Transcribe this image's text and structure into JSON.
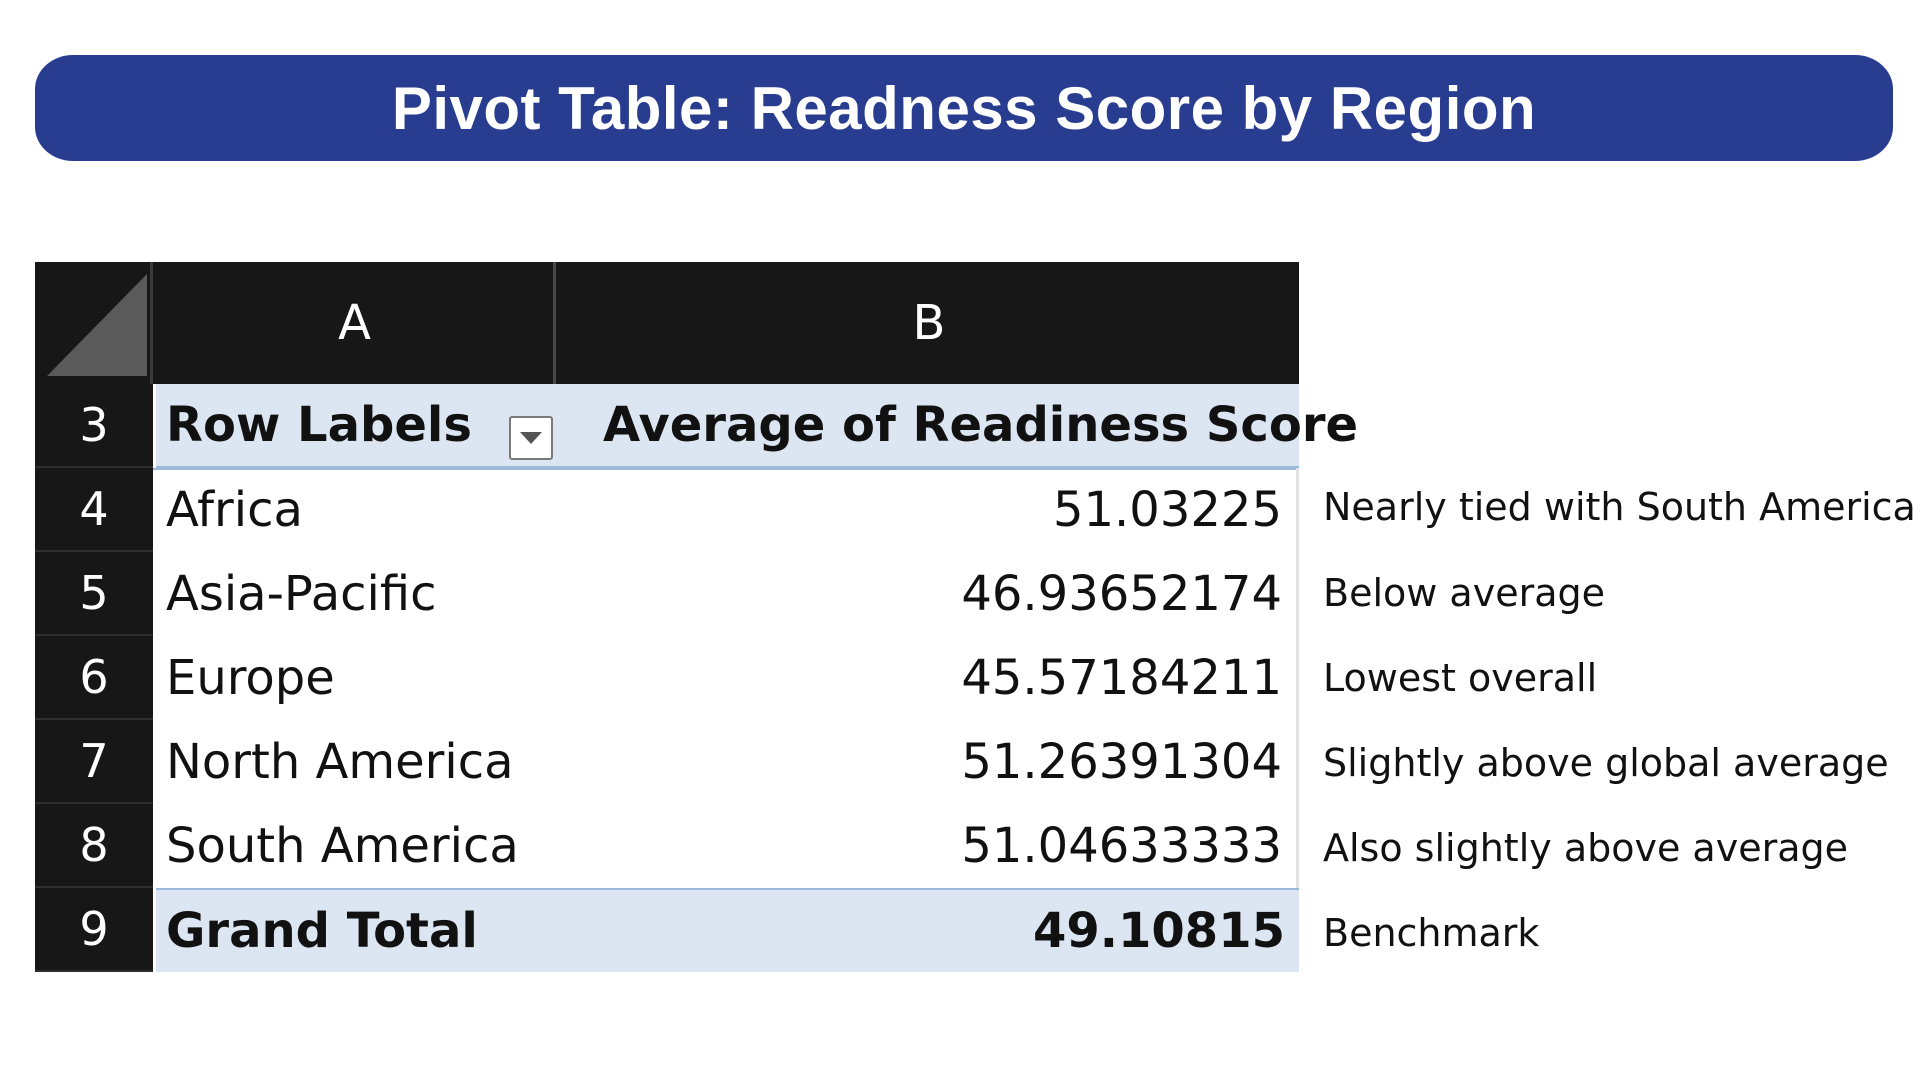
{
  "title": "Pivot Table: Readness Score by Region",
  "columns": {
    "a": "A",
    "b": "B"
  },
  "header_row": {
    "num": "3",
    "label_a": "Row Labels",
    "label_b": "Average of Readiness Score"
  },
  "rows": [
    {
      "num": "4",
      "region": "Africa",
      "value": "51.03225",
      "note": "Nearly tied with South America"
    },
    {
      "num": "5",
      "region": "Asia-Pacific",
      "value": "46.93652174",
      "note": "Below average"
    },
    {
      "num": "6",
      "region": "Europe",
      "value": "45.57184211",
      "note": "Lowest overall"
    },
    {
      "num": "7",
      "region": "North America",
      "value": "51.26391304",
      "note": "Slightly above global average"
    },
    {
      "num": "8",
      "region": "South America",
      "value": "51.04633333",
      "note": "Also slightly above average"
    }
  ],
  "total_row": {
    "num": "9",
    "label": "Grand Total",
    "value": "49.10815",
    "note": "Benchmark"
  },
  "icons": {
    "filter": "filter-dropdown-icon",
    "corner": "select-all-triangle-icon"
  },
  "colors": {
    "banner": "#283d8f",
    "header_fill": "#dce6f2",
    "grid_header": "#171717"
  }
}
